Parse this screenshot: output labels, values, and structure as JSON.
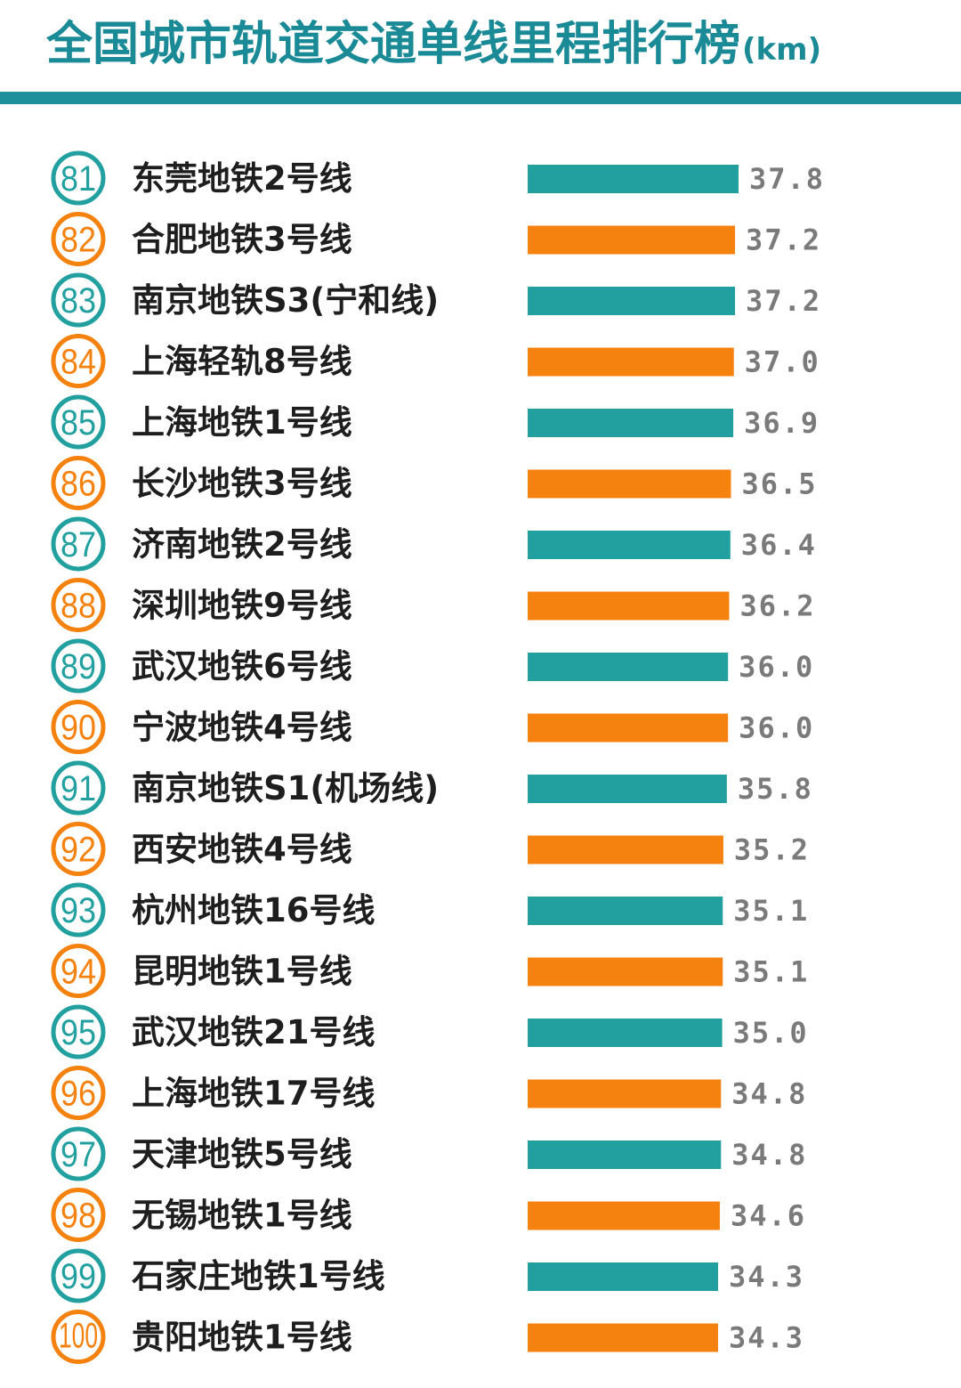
{
  "header": {
    "title": "全国城市轨道交通单线里程排行榜",
    "unit": "(km)"
  },
  "colors": {
    "teal": "#22a0a0",
    "orange": "#f5820f",
    "title": "#1a8a96",
    "rule": "#1f8f9c",
    "label": "#1e1e1e",
    "value": "#7a7a7a"
  },
  "chart_data": {
    "type": "bar",
    "orientation": "horizontal",
    "title": "全国城市轨道交通单线里程排行榜(km)",
    "unit": "km",
    "color_pattern": [
      "teal",
      "orange"
    ],
    "ranks": [
      "81",
      "82",
      "83",
      "84",
      "85",
      "86",
      "87",
      "88",
      "89",
      "90",
      "91",
      "92",
      "93",
      "94",
      "95",
      "96",
      "97",
      "98",
      "99",
      "100"
    ],
    "categories": [
      "东莞地铁2号线",
      "合肥地铁3号线",
      "南京地铁S3(宁和线)",
      "上海轻轨8号线",
      "上海地铁1号线",
      "长沙地铁3号线",
      "济南地铁2号线",
      "深圳地铁9号线",
      "武汉地铁6号线",
      "宁波地铁4号线",
      "南京地铁S1(机场线)",
      "西安地铁4号线",
      "杭州地铁16号线",
      "昆明地铁1号线",
      "武汉地铁21号线",
      "上海地铁17号线",
      "天津地铁5号线",
      "无锡地铁1号线",
      "石家庄地铁1号线",
      "贵阳地铁1号线"
    ],
    "values": [
      37.8,
      37.2,
      37.2,
      37.0,
      36.9,
      36.5,
      36.4,
      36.2,
      36.0,
      36.0,
      35.8,
      35.2,
      35.1,
      35.1,
      35.0,
      34.8,
      34.8,
      34.6,
      34.3,
      34.3
    ],
    "value_labels": [
      "37.8",
      "37.2",
      "37.2",
      "37.0",
      "36.9",
      "36.5",
      "36.4",
      "36.2",
      "36.0",
      "36.0",
      "35.8",
      "35.2",
      "35.1",
      "35.1",
      "35.0",
      "34.8",
      "34.8",
      "34.6",
      "34.3",
      "34.3"
    ],
    "grid": false,
    "legend": false
  }
}
